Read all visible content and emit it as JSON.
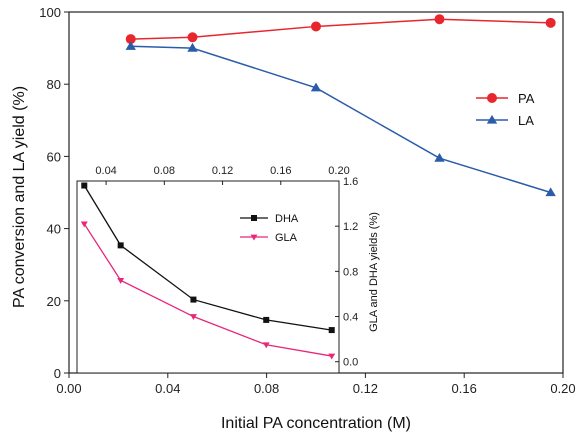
{
  "chart_data": [
    {
      "id": "main",
      "type": "line",
      "xlabel": "Initial PA concentration (M)",
      "ylabel": "PA conversion and LA yield (%)",
      "xlim": [
        0.0,
        0.2
      ],
      "ylim": [
        0,
        100
      ],
      "xticks": [
        "0.00",
        "0.04",
        "0.08",
        "0.12",
        "0.16",
        "0.20"
      ],
      "yticks": [
        "0",
        "20",
        "40",
        "60",
        "80",
        "100"
      ],
      "legend_position": "right",
      "series": [
        {
          "name": "PA",
          "color": "#e8262d",
          "marker": "circle",
          "x": [
            0.025,
            0.05,
            0.1,
            0.15,
            0.195
          ],
          "values": [
            92.5,
            93.0,
            96.0,
            98.0,
            97.0
          ]
        },
        {
          "name": "LA",
          "color": "#2a5caa",
          "marker": "triangle",
          "x": [
            0.025,
            0.05,
            0.1,
            0.15,
            0.195
          ],
          "values": [
            90.5,
            90.0,
            79.0,
            59.5,
            50.0
          ]
        }
      ]
    },
    {
      "id": "inset",
      "type": "line",
      "xlabel": "",
      "ylabel": "GLA and DHA yields (%)",
      "xlim": [
        0.02,
        0.2
      ],
      "ylim": [
        -0.1,
        1.6
      ],
      "xticks": [
        "0.04",
        "0.08",
        "0.12",
        "0.16",
        "0.20"
      ],
      "yticks": [
        "0.0",
        "0.4",
        "0.8",
        "1.2",
        "1.6"
      ],
      "legend_position": "top-right",
      "series": [
        {
          "name": "DHA",
          "color": "#111111",
          "marker": "square",
          "x": [
            0.025,
            0.05,
            0.1,
            0.15,
            0.195
          ],
          "values": [
            1.56,
            1.03,
            0.55,
            0.37,
            0.28
          ]
        },
        {
          "name": "GLA",
          "color": "#e8267a",
          "marker": "triangle-down",
          "x": [
            0.025,
            0.05,
            0.1,
            0.15,
            0.195
          ],
          "values": [
            1.22,
            0.72,
            0.4,
            0.15,
            0.05
          ]
        }
      ]
    }
  ]
}
